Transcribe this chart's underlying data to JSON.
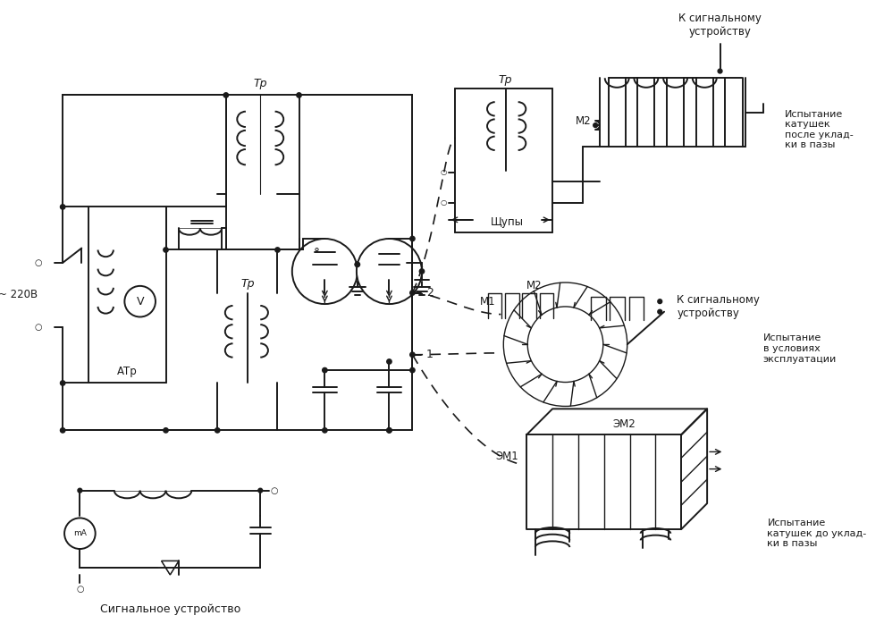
{
  "bg": "#ffffff",
  "lc": "#1a1a1a",
  "lw": 1.4,
  "lw_thin": 1.0,
  "fs": 8.5,
  "labels": {
    "voltage": "~ 220В",
    "atr": "АТр",
    "tr1": "Тр",
    "tr2": "Тр",
    "tr3": "Тр",
    "sig_dev": "Сигнальное устройство",
    "probes": "Щупы",
    "m1": "М1",
    "m2_mid": "М2",
    "m2_top": "М2",
    "em1": "ЭМ1",
    "em2": "ЭМ2",
    "pt1": "1",
    "pt2": "2",
    "k_sig1": "К сигнальному\nустройству",
    "k_sig2": "К сигнальному\nустройству",
    "test1": "Испытание\nкатушек\nпосле уклад-\nки в пазы",
    "test2": "Испытание\nв условиях\nэксплуатации",
    "test3": "Испытание\nкатушек до уклад-\nки в пазы"
  }
}
